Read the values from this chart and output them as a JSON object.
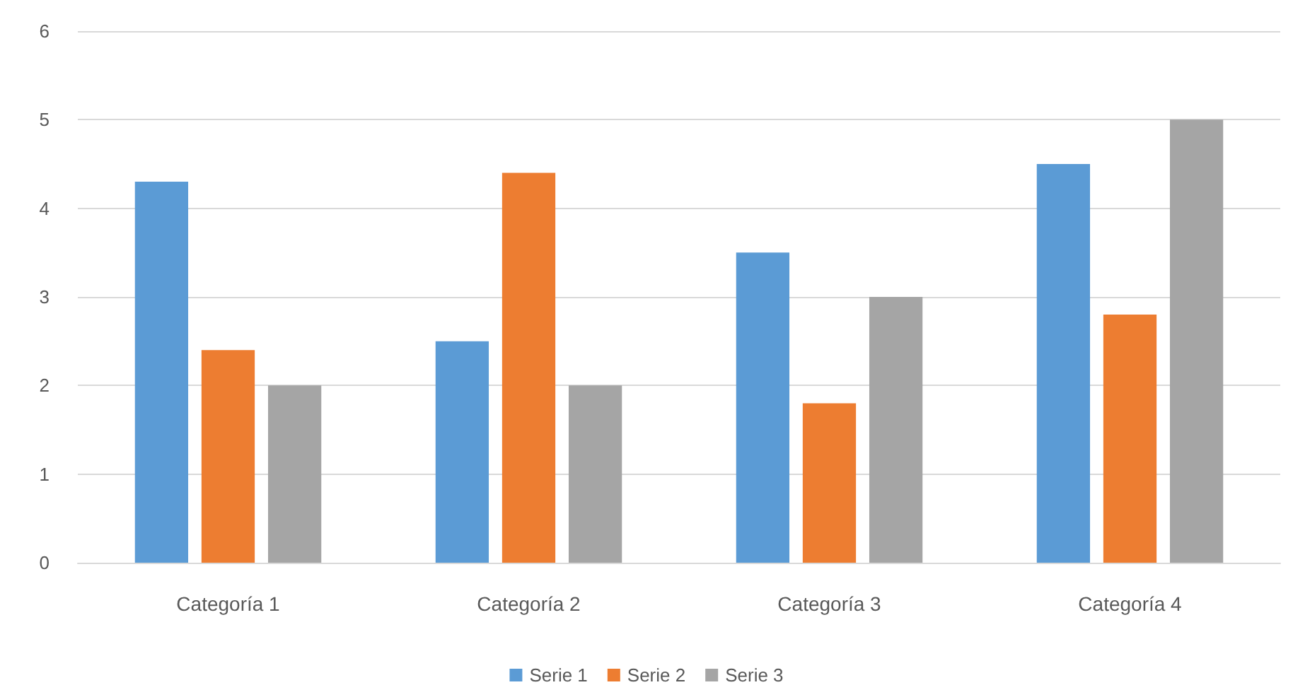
{
  "chart_data": {
    "type": "bar",
    "categories": [
      "Categoría 1",
      "Categoría 2",
      "Categoría 3",
      "Categoría 4"
    ],
    "series": [
      {
        "name": "Serie 1",
        "color": "#5b9bd5",
        "values": [
          4.3,
          2.5,
          3.5,
          4.5
        ]
      },
      {
        "name": "Serie 2",
        "color": "#ed7d31",
        "values": [
          2.4,
          4.4,
          1.8,
          2.8
        ]
      },
      {
        "name": "Serie 3",
        "color": "#a5a5a5",
        "values": [
          2,
          2,
          3,
          5
        ]
      }
    ],
    "ylim": [
      0,
      6
    ],
    "yticks": [
      0,
      1,
      2,
      3,
      4,
      5,
      6
    ],
    "grid": "y",
    "legend": "bottom"
  }
}
